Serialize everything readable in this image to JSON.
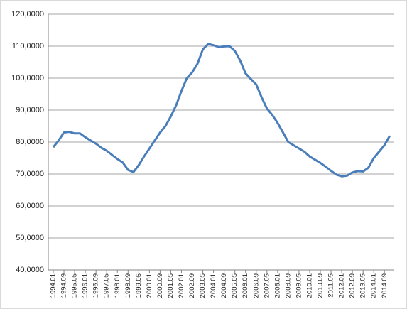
{
  "chart_data": {
    "type": "line",
    "categories": [
      "1994.01",
      null,
      "1994.09",
      null,
      "1995.05",
      null,
      "1996.01",
      null,
      "1996.09",
      null,
      "1997.05",
      null,
      "1998.01",
      null,
      "1998.09",
      null,
      "1999.05",
      null,
      "2000.01",
      null,
      "2000.09",
      null,
      "2001.05",
      null,
      "2002.01",
      null,
      "2002.09",
      null,
      "2003.05",
      null,
      "2004.01",
      null,
      "2004.09",
      null,
      "2005.05",
      null,
      "2006.01",
      null,
      "2006.09",
      null,
      "2007.05",
      null,
      "2008.01",
      null,
      "2008.09",
      null,
      "2009.05",
      null,
      "2010.01",
      null,
      "2010.09",
      null,
      "2011.05",
      null,
      "2012.01",
      null,
      "2012.09",
      null,
      "2013.05",
      null,
      "2014.01",
      null,
      "2014.09",
      null
    ],
    "values": [
      78.4,
      80.5,
      83.0,
      83.2,
      82.7,
      82.7,
      81.5,
      80.5,
      79.5,
      78.2,
      77.3,
      76.0,
      74.7,
      73.6,
      71.3,
      70.6,
      72.8,
      75.5,
      78.0,
      80.5,
      83.0,
      85.0,
      88.0,
      91.5,
      96.0,
      100.0,
      101.8,
      104.5,
      109.0,
      110.7,
      110.3,
      109.7,
      109.9,
      110.0,
      108.5,
      105.5,
      101.5,
      99.7,
      98.0,
      94.0,
      90.5,
      88.5,
      86.0,
      83.0,
      80.0,
      79.0,
      78.0,
      77.0,
      75.5,
      74.5,
      73.5,
      72.3,
      71.0,
      69.8,
      69.3,
      69.5,
      70.5,
      70.9,
      70.8,
      72.0,
      75.0,
      77.0,
      79.0,
      82.0
    ],
    "color": "#4a7ebb",
    "ylim": [
      40,
      120
    ],
    "yticks": [
      {
        "value": 40,
        "label": "40,0000"
      },
      {
        "value": 50,
        "label": "50,0000"
      },
      {
        "value": 60,
        "label": "60,0000"
      },
      {
        "value": 70,
        "label": "70,0000"
      },
      {
        "value": 80,
        "label": "80,0000"
      },
      {
        "value": 90,
        "label": "90,0000"
      },
      {
        "value": 100,
        "label": "100,0000"
      },
      {
        "value": 110,
        "label": "110,0000"
      },
      {
        "value": 120,
        "label": "120,0000"
      }
    ],
    "grid": true
  }
}
